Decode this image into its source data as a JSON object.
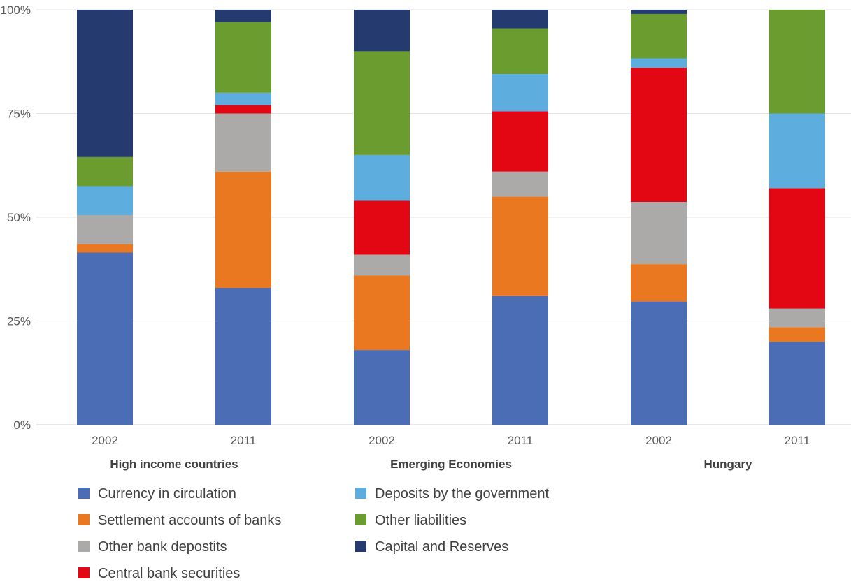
{
  "chart_data": {
    "type": "bar",
    "stacked": "percent",
    "title": "",
    "xlabel": "",
    "ylabel": "",
    "ylim": [
      0,
      100
    ],
    "y_ticks": [
      "0%",
      "25%",
      "50%",
      "75%",
      "100%"
    ],
    "grid": true,
    "legend_position": "bottom",
    "categories": [
      "2002",
      "2011",
      "2002",
      "2011",
      "2002",
      "2011"
    ],
    "groups": [
      {
        "label": "High income countries",
        "categories": [
          0,
          1
        ]
      },
      {
        "label": "Emerging Economies",
        "categories": [
          2,
          3
        ]
      },
      {
        "label": "Hungary",
        "categories": [
          4,
          5
        ]
      }
    ],
    "series": [
      {
        "name": "Currency in circulation",
        "color": "#4a6db5",
        "values": [
          41.5,
          33,
          18,
          31,
          29.7,
          20
        ]
      },
      {
        "name": "Settlement accounts of banks",
        "color": "#e97821",
        "values": [
          2,
          28,
          18,
          24,
          9,
          3.5
        ]
      },
      {
        "name": "Other bank depostits",
        "color": "#acaaa8",
        "values": [
          7,
          14,
          5,
          6,
          15,
          4.5
        ]
      },
      {
        "name": "Central bank securities",
        "color": "#e30613",
        "values": [
          0,
          2,
          13,
          14.5,
          32.3,
          29
        ]
      },
      {
        "name": "Deposits by the government",
        "color": "#5daddf",
        "values": [
          7,
          3,
          11,
          9,
          2.3,
          18
        ]
      },
      {
        "name": "Other liabilities",
        "color": "#6a9c2f",
        "values": [
          7,
          17,
          25,
          11,
          10.7,
          25
        ]
      },
      {
        "name": "Capital and Reserves",
        "color": "#253a6e",
        "values": [
          35.5,
          3,
          10,
          4.5,
          1,
          0
        ]
      }
    ]
  }
}
